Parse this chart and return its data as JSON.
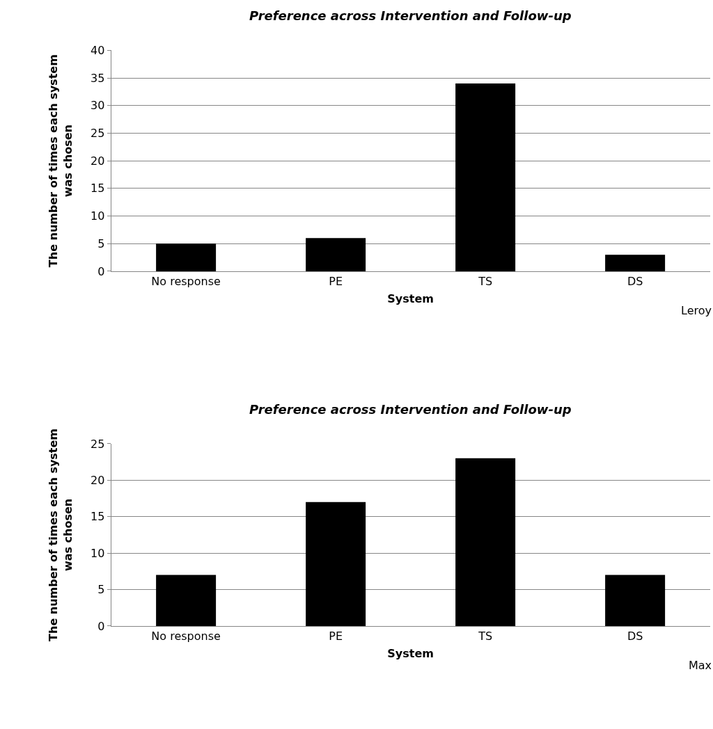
{
  "chart_data": [
    {
      "type": "bar",
      "title": "Preference across Intervention and Follow-up",
      "xlabel": "System",
      "ylabel": "The number of times each system was chosen",
      "categories": [
        "No response",
        "PE",
        "TS",
        "DS"
      ],
      "values": [
        5,
        6,
        34,
        3
      ],
      "color": "#000000",
      "ylim": [
        0,
        40
      ],
      "yticks": [
        0,
        5,
        10,
        15,
        20,
        25,
        30,
        35,
        40
      ],
      "grid": "y",
      "annotations": [
        "Leroy"
      ]
    },
    {
      "type": "bar",
      "title": "Preference across Intervention and Follow-up",
      "xlabel": "System",
      "ylabel": "The number of times each system was chosen",
      "categories": [
        "No response",
        "PE",
        "TS",
        "DS"
      ],
      "values": [
        7,
        17,
        23,
        7
      ],
      "color": "#000000",
      "ylim": [
        0,
        25
      ],
      "yticks": [
        0,
        5,
        10,
        15,
        20,
        25
      ],
      "grid": "y",
      "annotations": [
        "Max"
      ]
    }
  ]
}
